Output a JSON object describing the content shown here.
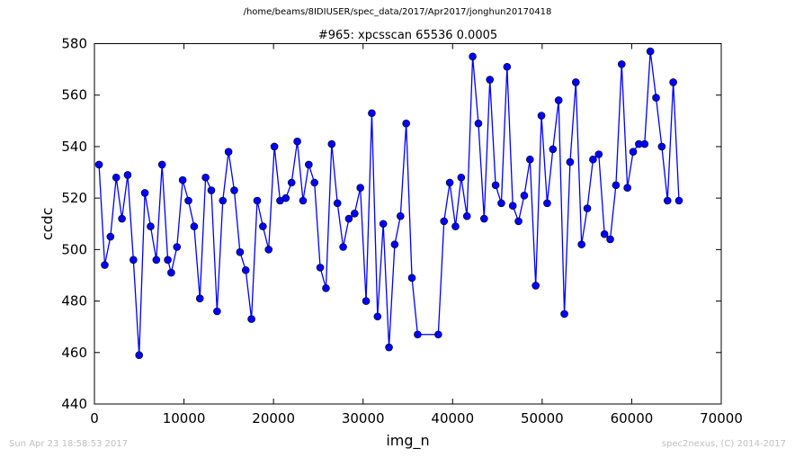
{
  "header": {
    "path": "/home/beams/8IDIUSER/spec_data/2017/Apr2017/jonghun20170418"
  },
  "footer": {
    "timestamp": "Sun Apr 23 18:58:53 2017",
    "credit": "spec2nexus, (C) 2014-2017"
  },
  "chart_data": {
    "type": "line",
    "title": "#965: xpcsscan 65536 0.0005",
    "xlabel": "img_n",
    "ylabel": "ccdc",
    "xlim": [
      0,
      70000
    ],
    "ylim": [
      440,
      580
    ],
    "x_ticks": [
      "0",
      "10000",
      "20000",
      "30000",
      "40000",
      "50000",
      "60000",
      "70000"
    ],
    "y_ticks": [
      "440",
      "460",
      "480",
      "500",
      "520",
      "540",
      "560",
      "580"
    ],
    "marker": "circle",
    "line_color": "#0000ff",
    "grid": false,
    "series": [
      {
        "x": [
          512,
          1152,
          1792,
          2432,
          3072,
          3712,
          4352,
          4992,
          5632,
          6272,
          6912,
          7552,
          8192,
          8576,
          9216,
          9856,
          10496,
          11136,
          11776,
          12416,
          13056,
          13696,
          14336,
          14976,
          15616,
          16256,
          16896,
          17536,
          18176,
          18816,
          19456,
          20096,
          20736,
          21376,
          22016,
          22656,
          23296,
          23936,
          24576,
          25216,
          25856,
          26496,
          27136,
          27776,
          28416,
          29056,
          29696,
          30336,
          30976,
          31616,
          32256,
          32896,
          33536,
          34176,
          34816,
          35456,
          36096,
          38400,
          39040,
          39680,
          40320,
          40960,
          41600,
          42240,
          42880,
          43520,
          44160,
          44800,
          45440,
          46080,
          46720,
          47360,
          48000,
          48640,
          49280,
          49920,
          50560,
          51200,
          51840,
          52480,
          53120,
          53760,
          54400,
          55040,
          55680,
          56320,
          56960,
          57600,
          58240,
          58880,
          59520,
          60160,
          60800,
          61440,
          62080,
          62720,
          63360,
          64000,
          64640,
          65280
        ],
        "y": [
          533,
          494,
          505,
          528,
          512,
          529,
          496,
          459,
          522,
          509,
          496,
          533,
          496,
          491,
          501,
          527,
          519,
          509,
          481,
          528,
          523,
          476,
          519,
          538,
          523,
          499,
          492,
          473,
          519,
          509,
          500,
          540,
          519,
          520,
          526,
          542,
          519,
          533,
          526,
          493,
          485,
          541,
          518,
          501,
          512,
          514,
          524,
          480,
          553,
          474,
          510,
          462,
          502,
          513,
          549,
          489,
          467,
          467,
          511,
          526,
          509,
          528,
          513,
          575,
          549,
          512,
          566,
          525,
          518,
          571,
          517,
          511,
          521,
          535,
          486,
          552,
          518,
          539,
          558,
          475,
          534,
          565,
          502,
          516,
          535,
          537,
          506,
          504,
          525,
          572,
          524,
          538,
          541,
          541,
          577,
          559,
          540,
          519,
          565,
          519
        ]
      }
    ]
  }
}
